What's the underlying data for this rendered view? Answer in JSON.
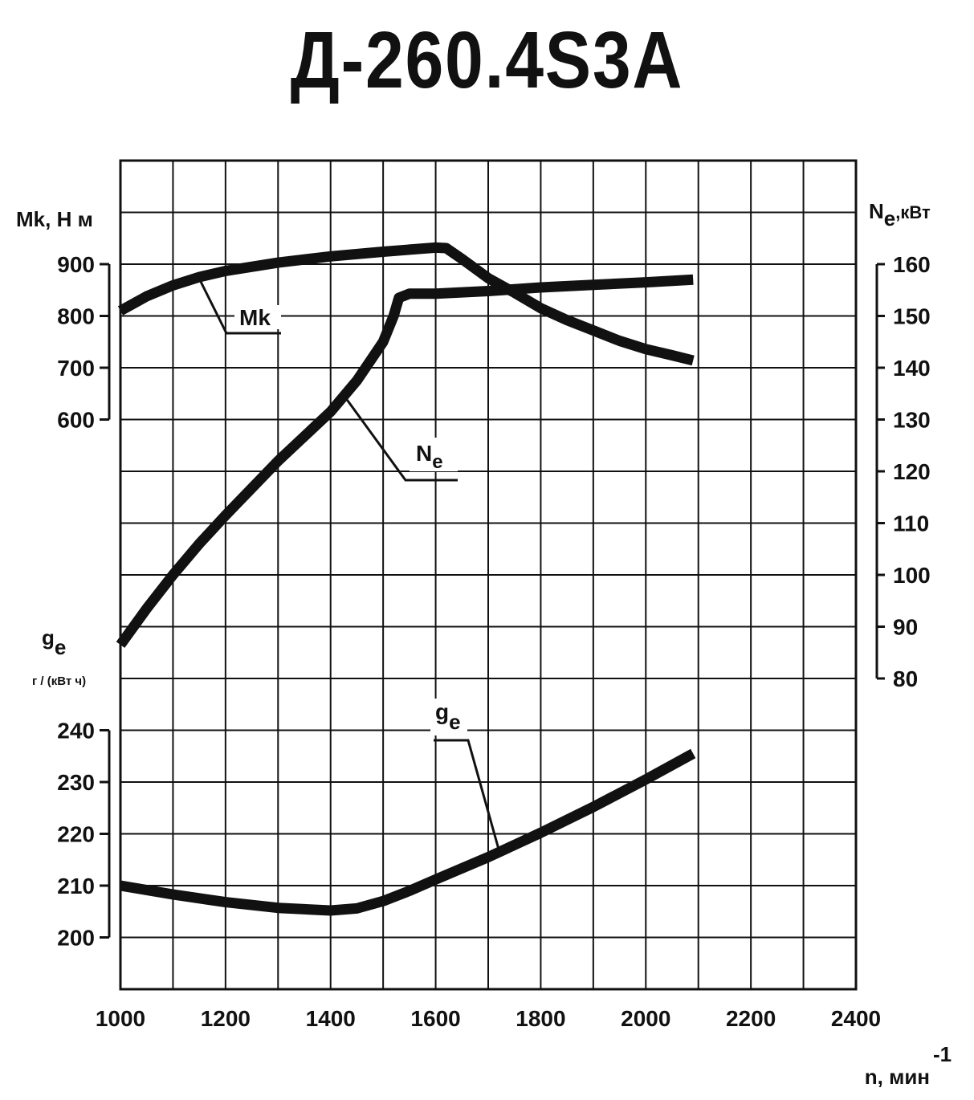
{
  "chart_data": {
    "type": "line",
    "title": "Д-260.4S3A",
    "xlabel": "n, мин",
    "xlabel_sup": "-1",
    "xlim": [
      1000,
      2400
    ],
    "xticks": [
      1000,
      1200,
      1400,
      1600,
      1800,
      2000,
      2200,
      2400
    ],
    "grid": true,
    "axes": {
      "torque": {
        "label": "Mk, Н м",
        "ticks": [
          600,
          700,
          800,
          900
        ],
        "side": "left-top"
      },
      "power": {
        "label_main": "N",
        "label_sub": "e",
        "label_unit": ",кВт",
        "ticks": [
          80,
          90,
          100,
          110,
          120,
          130,
          140,
          150,
          160
        ],
        "side": "right"
      },
      "consumption": {
        "label_main": "g",
        "label_sub": "e",
        "label_unit": "г / (кВт ч)",
        "ticks": [
          200,
          210,
          220,
          230,
          240
        ],
        "side": "left-bottom"
      }
    },
    "series": [
      {
        "name": "Mk",
        "axis": "torque",
        "x": [
          1000,
          1050,
          1100,
          1150,
          1200,
          1300,
          1400,
          1500,
          1550,
          1600,
          1620,
          1650,
          1700,
          1750,
          1800,
          1850,
          1900,
          1950,
          2000,
          2050,
          2090
        ],
        "values": [
          810,
          838,
          859,
          875,
          887,
          903,
          915,
          924,
          928,
          932,
          931,
          910,
          873,
          845,
          815,
          792,
          772,
          752,
          736,
          724,
          714
        ]
      },
      {
        "name": "Ne",
        "name_main": "N",
        "name_sub": "e",
        "axis": "power",
        "x": [
          1000,
          1050,
          1100,
          1150,
          1200,
          1300,
          1400,
          1450,
          1500,
          1520,
          1530,
          1550,
          1600,
          1700,
          1800,
          1900,
          2000,
          2090
        ],
        "values": [
          86.5,
          93.5,
          100,
          106,
          111.5,
          122,
          131.5,
          137.5,
          145,
          150,
          153.5,
          154.3,
          154.3,
          154.8,
          155.5,
          156,
          156.5,
          157
        ]
      },
      {
        "name": "ge",
        "name_main": "g",
        "name_sub": "e",
        "axis": "consumption",
        "x": [
          1000,
          1100,
          1200,
          1300,
          1400,
          1450,
          1500,
          1550,
          1600,
          1700,
          1800,
          1900,
          2000,
          2090
        ],
        "values": [
          210,
          208.3,
          206.8,
          205.7,
          205.2,
          205.6,
          207,
          209,
          211.2,
          215.5,
          220.2,
          225.2,
          230.5,
          235.5
        ]
      }
    ]
  }
}
